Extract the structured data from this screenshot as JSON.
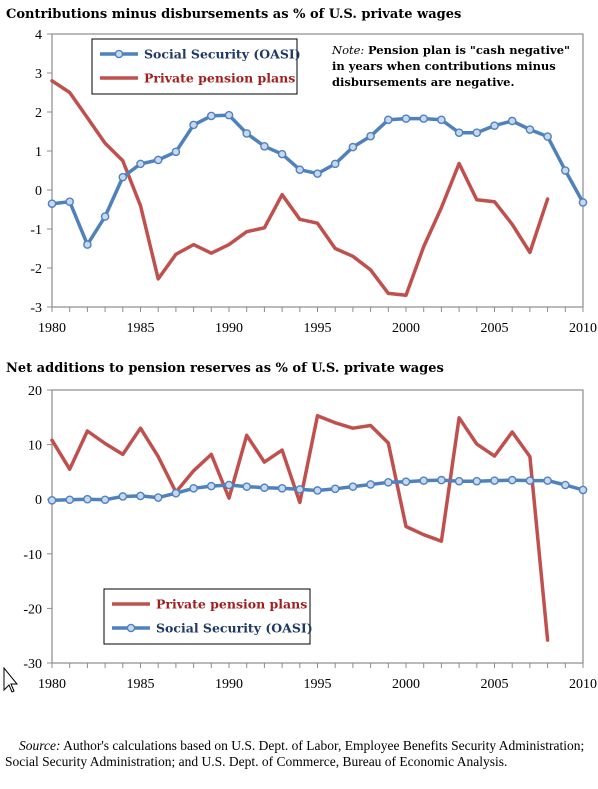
{
  "chart_data": [
    {
      "type": "line",
      "title": "Contributions minus disbursements as % of U.S. private wages",
      "xlim": [
        1980,
        2010
      ],
      "ylim": [
        -3,
        4
      ],
      "xticks": [
        1980,
        1985,
        1990,
        1995,
        2000,
        2005,
        2010
      ],
      "yticks": [
        -3,
        -2,
        -1,
        0,
        1,
        2,
        3,
        4
      ],
      "legend": "top-left",
      "note_label": "Note:",
      "note_lines": [
        "Pension plan is \"cash negative\"",
        "in years when contributions minus",
        "disbursements are negative."
      ],
      "series": [
        {
          "name": "Social Security (OASI)",
          "color": "#4F81BD",
          "markers": true,
          "x": [
            1980,
            1981,
            1982,
            1983,
            1984,
            1985,
            1986,
            1987,
            1988,
            1989,
            1990,
            1991,
            1992,
            1993,
            1994,
            1995,
            1996,
            1997,
            1998,
            1999,
            2000,
            2001,
            2002,
            2003,
            2004,
            2005,
            2006,
            2007,
            2008,
            2009,
            2010
          ],
          "y": [
            -0.35,
            -0.3,
            -1.4,
            -0.68,
            0.33,
            0.67,
            0.77,
            0.98,
            1.67,
            1.9,
            1.92,
            1.45,
            1.12,
            0.92,
            0.52,
            0.42,
            0.67,
            1.1,
            1.38,
            1.8,
            1.83,
            1.83,
            1.8,
            1.47,
            1.47,
            1.65,
            1.77,
            1.55,
            1.37,
            0.5,
            -0.32
          ]
        },
        {
          "name": "Private pension plans",
          "color": "#C0504D",
          "markers": false,
          "x": [
            1980,
            1981,
            1982,
            1983,
            1984,
            1985,
            1986,
            1987,
            1988,
            1989,
            1990,
            1991,
            1992,
            1993,
            1994,
            1995,
            1996,
            1997,
            1998,
            1999,
            2000,
            2001,
            2002,
            2003,
            2004,
            2005,
            2006,
            2007,
            2008
          ],
          "y": [
            2.8,
            2.5,
            1.85,
            1.2,
            0.75,
            -0.4,
            -2.28,
            -1.65,
            -1.4,
            -1.62,
            -1.4,
            -1.07,
            -0.97,
            -0.12,
            -0.75,
            -0.85,
            -1.5,
            -1.7,
            -2.05,
            -2.65,
            -2.7,
            -1.45,
            -0.45,
            0.68,
            -0.25,
            -0.3,
            -0.88,
            -1.6,
            -0.23
          ]
        }
      ]
    },
    {
      "type": "line",
      "title": "Net additions to pension reserves as % of  U.S. private wages",
      "xlim": [
        1980,
        2010
      ],
      "ylim": [
        -30,
        20
      ],
      "xticks": [
        1980,
        1985,
        1990,
        1995,
        2000,
        2005,
        2010
      ],
      "yticks": [
        -30,
        -20,
        -10,
        0,
        10,
        20
      ],
      "legend": "bottom-left",
      "series": [
        {
          "name": "Private pension plans",
          "color": "#C0504D",
          "markers": false,
          "x": [
            1980,
            1981,
            1982,
            1983,
            1984,
            1985,
            1986,
            1987,
            1988,
            1989,
            1990,
            1991,
            1992,
            1993,
            1994,
            1995,
            1996,
            1997,
            1998,
            1999,
            2000,
            2001,
            2002,
            2003,
            2004,
            2005,
            2006,
            2007,
            2008
          ],
          "y": [
            10.8,
            5.5,
            12.5,
            10.2,
            8.2,
            13,
            7.8,
            1.3,
            5.2,
            8.2,
            0.2,
            11.7,
            6.8,
            9,
            -0.6,
            15.3,
            14,
            13,
            13.5,
            10.3,
            -5,
            -6.5,
            -7.7,
            14.9,
            10.1,
            7.9,
            12.3,
            7.8,
            -25.8
          ]
        },
        {
          "name": "Social Security (OASI)",
          "color": "#4F81BD",
          "markers": true,
          "x": [
            1980,
            1981,
            1982,
            1983,
            1984,
            1985,
            1986,
            1987,
            1988,
            1989,
            1990,
            1991,
            1992,
            1993,
            1994,
            1995,
            1996,
            1997,
            1998,
            1999,
            2000,
            2001,
            2002,
            2003,
            2004,
            2005,
            2006,
            2007,
            2008,
            2009,
            2010
          ],
          "y": [
            -0.2,
            -0.1,
            0,
            -0.1,
            0.5,
            0.6,
            0.3,
            1.1,
            2,
            2.4,
            2.6,
            2.3,
            2.1,
            2,
            1.8,
            1.6,
            1.9,
            2.3,
            2.7,
            3.1,
            3.2,
            3.4,
            3.5,
            3.3,
            3.3,
            3.4,
            3.5,
            3.4,
            3.4,
            2.6,
            1.7
          ]
        }
      ]
    }
  ],
  "source": {
    "label": "Source:",
    "text": "Author's calculations based on U.S. Dept. of Labor, Employee Benefits Security Administration; Social Security Administration; and U.S. Dept. of Commerce, Bureau of Economic Analysis."
  }
}
